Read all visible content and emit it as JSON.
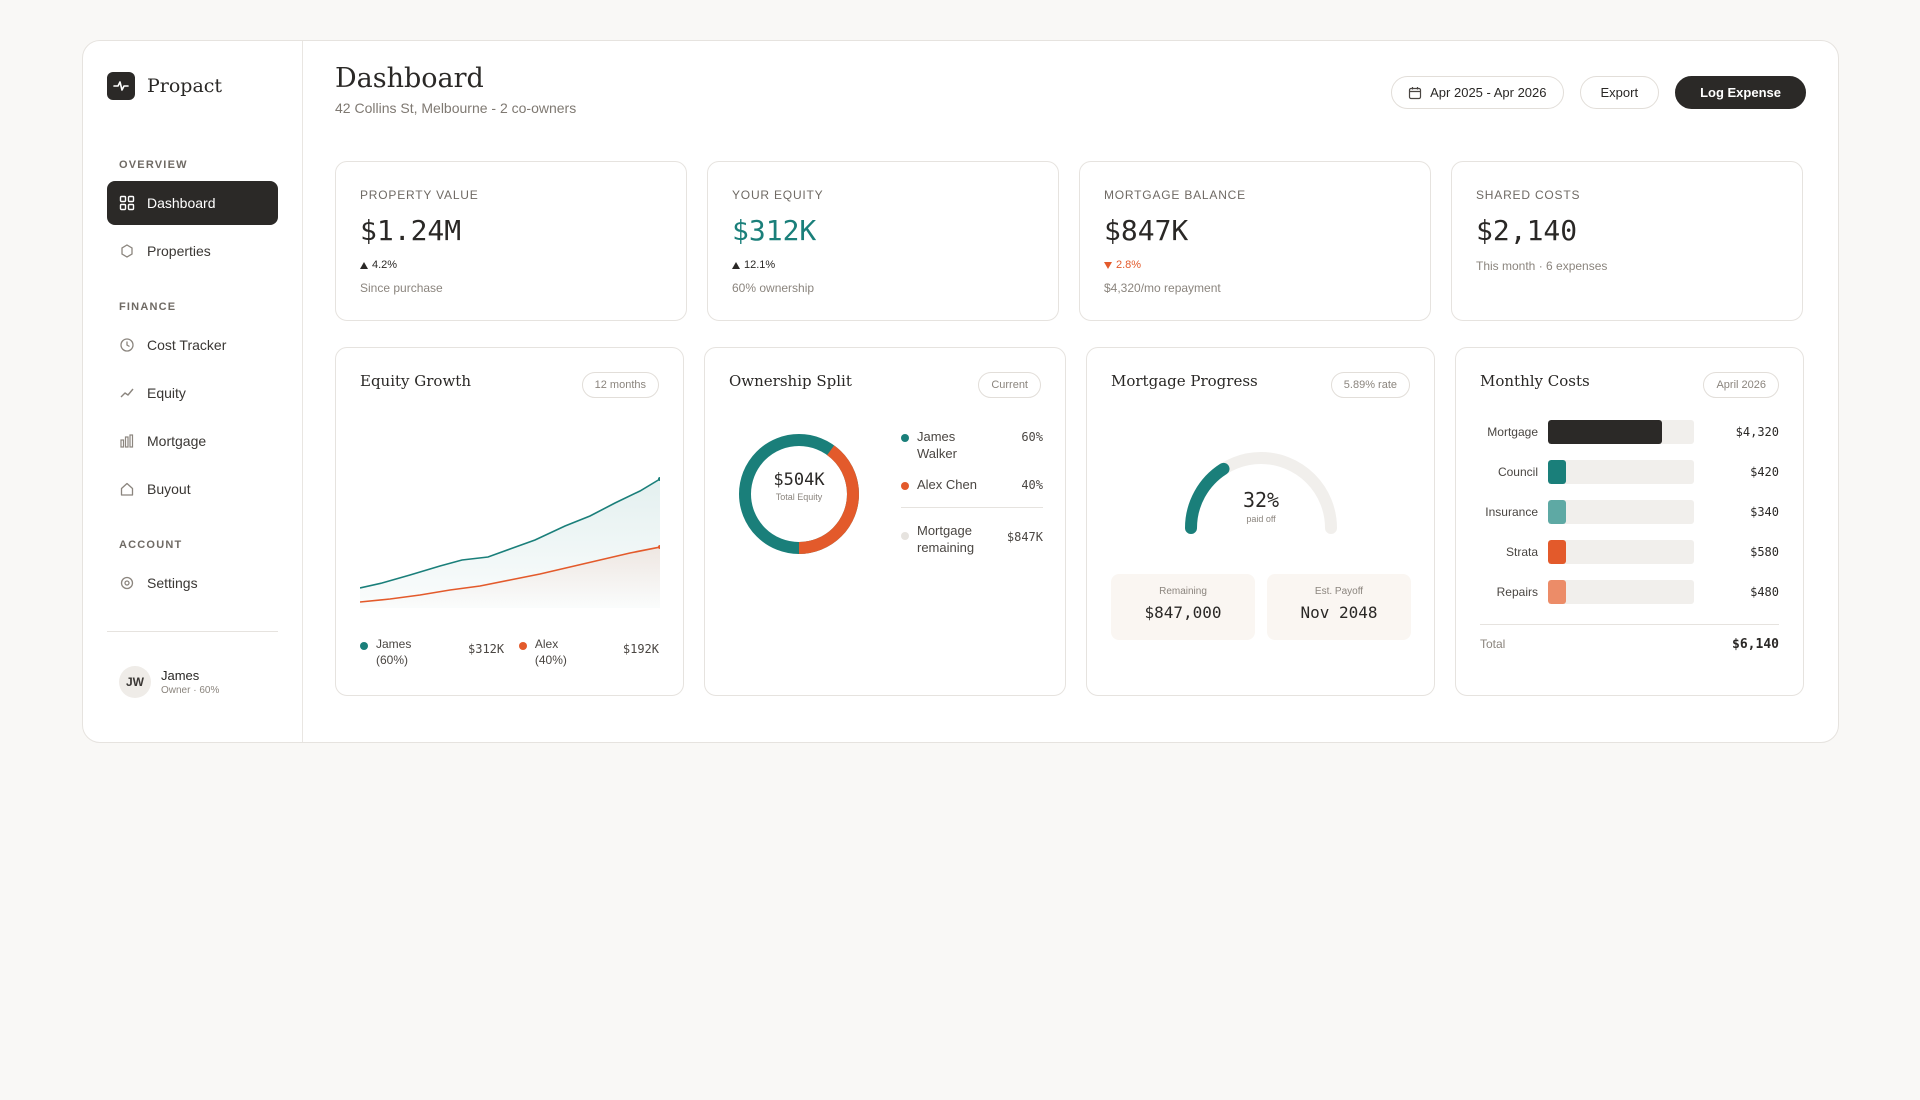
{
  "brand": {
    "name": "Propact"
  },
  "sidebar": {
    "sections": {
      "overview": "OVERVIEW",
      "finance": "FINANCE",
      "account": "ACCOUNT"
    },
    "items": [
      {
        "label": "Dashboard",
        "icon": "dashboard-icon",
        "active": true
      },
      {
        "label": "Properties",
        "icon": "hexagon-icon"
      },
      {
        "label": "Cost Tracker",
        "icon": "clock-icon"
      },
      {
        "label": "Equity",
        "icon": "trend-icon"
      },
      {
        "label": "Mortgage",
        "icon": "bar-chart-icon"
      },
      {
        "label": "Buyout",
        "icon": "home-icon"
      },
      {
        "label": "Settings",
        "icon": "settings-icon"
      }
    ],
    "user": {
      "initials": "JW",
      "name": "James",
      "role": "Owner · 60%"
    }
  },
  "header": {
    "title": "Dashboard",
    "subtitle": "42 Collins St, Melbourne - 2 co-owners",
    "date_range": "Apr 2025 - Apr 2026",
    "export_label": "Export",
    "log_label": "Log Expense"
  },
  "kpis": [
    {
      "label": "PROPERTY VALUE",
      "value": "$1.24M",
      "change": "4.2%",
      "direction": "up",
      "sub": "Since purchase"
    },
    {
      "label": "YOUR EQUITY",
      "value": "$312K",
      "change": "12.1%",
      "direction": "up",
      "sub": "60% ownership"
    },
    {
      "label": "MORTGAGE BALANCE",
      "value": "$847K",
      "change": "2.8%",
      "direction": "down",
      "sub": "$4,320/mo repayment"
    },
    {
      "label": "SHARED COSTS",
      "value": "$2,140",
      "sub": "This month · 6 expenses"
    }
  ],
  "equity_growth": {
    "title": "Equity Growth",
    "pill": "12 months",
    "legend": [
      {
        "name": "James (60%)",
        "value": "$312K",
        "color": "#1a7f7a"
      },
      {
        "name": "Alex (40%)",
        "value": "$192K",
        "color": "#e35a2b"
      }
    ]
  },
  "ownership": {
    "title": "Ownership Split",
    "pill": "Current",
    "center_value": "$504K",
    "center_label": "Total Equity",
    "rows": [
      {
        "name": "James Walker",
        "value": "60%",
        "color": "#1a7f7a"
      },
      {
        "name": "Alex Chen",
        "value": "40%",
        "color": "#e35a2b"
      }
    ],
    "mortgage": {
      "name": "Mortgage remaining",
      "value": "$847K",
      "color": "#e6e3df"
    }
  },
  "mortgage": {
    "title": "Mortgage Progress",
    "pill": "5.89% rate",
    "percent": "32%",
    "percent_value": 0.32,
    "percent_label": "paid off",
    "remaining_label": "Remaining",
    "remaining_value": "$847,000",
    "payoff_label": "Est. Payoff",
    "payoff_value": "Nov 2048"
  },
  "monthly_costs": {
    "title": "Monthly Costs",
    "pill": "April 2026",
    "items": [
      {
        "label": "Mortgage",
        "value": "$4,320",
        "amount": 4320,
        "color": "#2b2927"
      },
      {
        "label": "Council",
        "value": "$420",
        "amount": 420,
        "color": "#1a7f7a"
      },
      {
        "label": "Insurance",
        "value": "$340",
        "amount": 340,
        "color": "#5ea9a4"
      },
      {
        "label": "Strata",
        "value": "$580",
        "amount": 580,
        "color": "#e35a2b"
      },
      {
        "label": "Repairs",
        "value": "$480",
        "amount": 480,
        "color": "#ec8c68"
      }
    ],
    "total_label": "Total",
    "total_value": "$6,140"
  }
}
